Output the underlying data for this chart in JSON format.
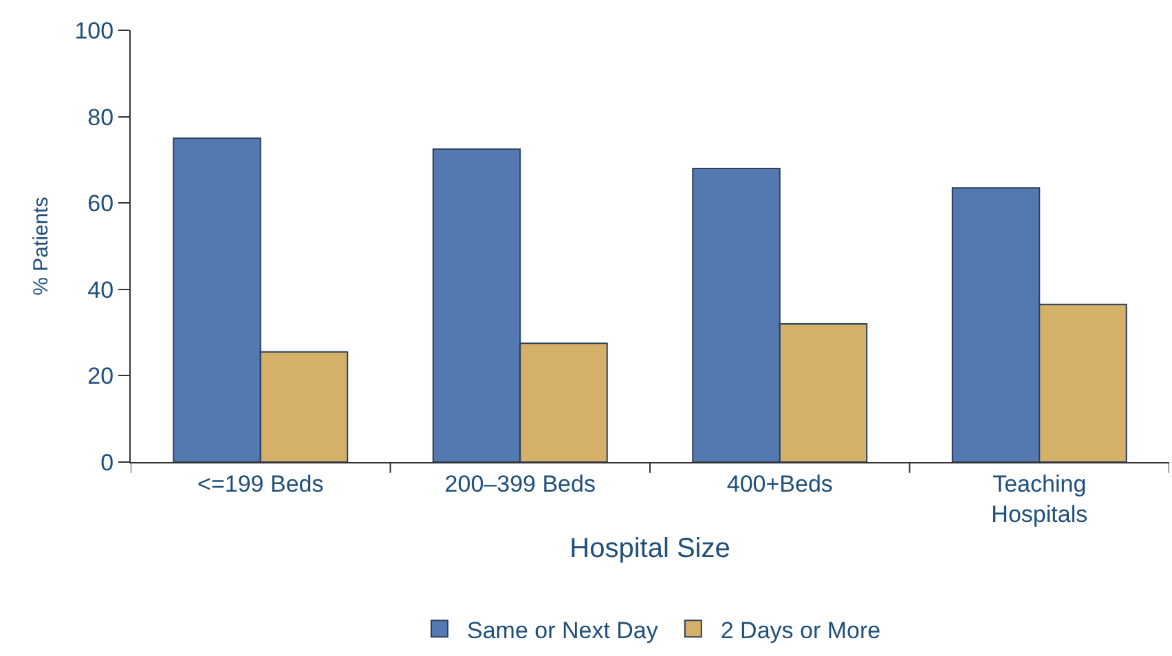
{
  "chart_data": {
    "type": "bar",
    "xlabel": "Hospital Size",
    "ylabel": "% Patients",
    "categories": [
      "<=199 Beds",
      "200–399 Beds",
      "400+Beds",
      "Teaching Hospitals"
    ],
    "series": [
      {
        "name": "Same or Next Day",
        "color": "#5479b0",
        "values": [
          75,
          72.5,
          68,
          63.5
        ]
      },
      {
        "name": "2 Days or More",
        "color": "#d4b068",
        "values": [
          25.5,
          27.5,
          32,
          36.5
        ]
      }
    ],
    "ylim": [
      0,
      100
    ],
    "yticks": [
      0,
      20,
      40,
      60,
      80,
      100
    ],
    "legend": "bottom"
  }
}
